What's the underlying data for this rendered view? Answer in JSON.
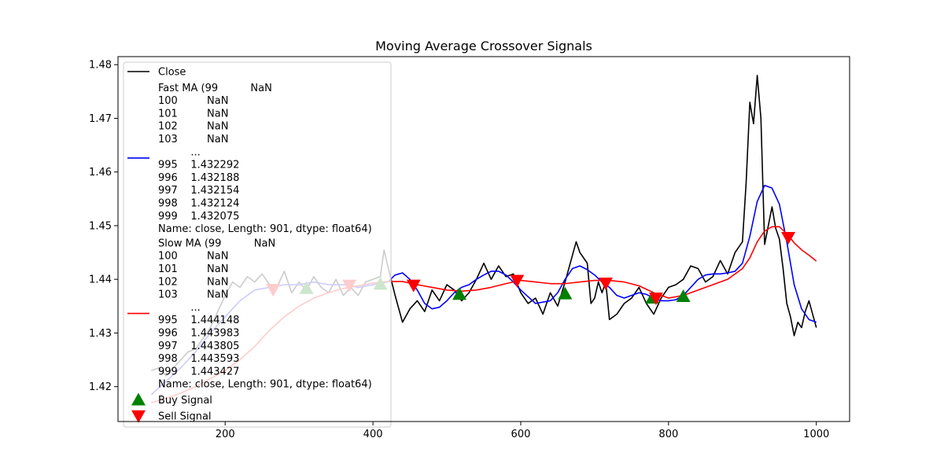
{
  "chart_data": {
    "type": "line",
    "title": "Moving Average Crossover Signals",
    "xlabel": "",
    "ylabel": "",
    "xlim": [
      55,
      1045
    ],
    "ylim": [
      1.4135,
      1.4815
    ],
    "xticks": [
      200,
      400,
      600,
      800,
      1000
    ],
    "yticks": [
      1.42,
      1.43,
      1.44,
      1.45,
      1.46,
      1.47,
      1.48
    ],
    "ytick_labels": [
      "1.42",
      "1.43",
      "1.44",
      "1.45",
      "1.46",
      "1.47",
      "1.48"
    ],
    "grid": false,
    "legend_position": "top-left",
    "colors": {
      "close": "#000000",
      "fast": "#0000ff",
      "slow": "#ff0000",
      "buy": "#008000",
      "sell": "#ff0000"
    },
    "series": [
      {
        "name": "Close",
        "style": "line",
        "x": [
          100,
          110,
          120,
          130,
          140,
          150,
          160,
          170,
          180,
          190,
          200,
          210,
          220,
          230,
          240,
          250,
          260,
          270,
          280,
          290,
          300,
          310,
          320,
          330,
          340,
          350,
          360,
          370,
          380,
          390,
          400,
          410,
          415,
          420,
          430,
          440,
          450,
          460,
          470,
          480,
          490,
          500,
          510,
          520,
          530,
          540,
          550,
          560,
          570,
          580,
          590,
          600,
          610,
          620,
          630,
          640,
          650,
          660,
          670,
          675,
          680,
          685,
          690,
          695,
          700,
          705,
          710,
          715,
          720,
          730,
          740,
          750,
          760,
          770,
          780,
          790,
          800,
          810,
          820,
          830,
          840,
          850,
          860,
          870,
          880,
          890,
          900,
          905,
          910,
          915,
          920,
          925,
          930,
          935,
          940,
          945,
          950,
          955,
          960,
          965,
          970,
          975,
          980,
          985,
          990,
          995,
          1000
        ],
        "y": [
          1.423,
          1.4235,
          1.422,
          1.4235,
          1.425,
          1.4265,
          1.427,
          1.429,
          1.431,
          1.434,
          1.437,
          1.4395,
          1.4385,
          1.4405,
          1.4395,
          1.441,
          1.439,
          1.4385,
          1.4415,
          1.4375,
          1.4395,
          1.438,
          1.4405,
          1.4385,
          1.4375,
          1.44,
          1.437,
          1.4385,
          1.437,
          1.4395,
          1.44,
          1.4405,
          1.4455,
          1.4425,
          1.437,
          1.432,
          1.4345,
          1.436,
          1.434,
          1.438,
          1.436,
          1.439,
          1.438,
          1.436,
          1.4375,
          1.44,
          1.443,
          1.44,
          1.4425,
          1.4405,
          1.441,
          1.4375,
          1.4355,
          1.4365,
          1.4335,
          1.4375,
          1.435,
          1.4395,
          1.4445,
          1.447,
          1.445,
          1.444,
          1.443,
          1.4355,
          1.4365,
          1.4395,
          1.4375,
          1.4395,
          1.4325,
          1.4335,
          1.4355,
          1.4365,
          1.4385,
          1.4355,
          1.4335,
          1.4365,
          1.4385,
          1.439,
          1.44,
          1.4425,
          1.442,
          1.4395,
          1.4405,
          1.4435,
          1.441,
          1.445,
          1.447,
          1.458,
          1.473,
          1.469,
          1.478,
          1.47,
          1.4465,
          1.45,
          1.4535,
          1.4495,
          1.4475,
          1.442,
          1.4355,
          1.433,
          1.4295,
          1.432,
          1.431,
          1.434,
          1.436,
          1.4335,
          1.431
        ],
        "label_key": "legend.close"
      },
      {
        "name": "Fast MA (99          NaN\n100         NaN\n101         NaN\n102         NaN\n103         NaN\n          ...   \n995    1.432292\n996    1.432188\n997    1.432154\n998    1.432124\n999    1.432075\nName: close, Length: 901, dtype: float64)",
        "style": "line",
        "x": [
          100,
          120,
          140,
          160,
          180,
          200,
          220,
          240,
          260,
          280,
          300,
          320,
          340,
          360,
          380,
          400,
          420,
          430,
          440,
          450,
          460,
          470,
          480,
          490,
          500,
          510,
          520,
          530,
          540,
          550,
          560,
          570,
          580,
          590,
          600,
          620,
          640,
          650,
          660,
          670,
          680,
          690,
          700,
          710,
          720,
          730,
          740,
          750,
          760,
          770,
          780,
          790,
          800,
          810,
          820,
          830,
          840,
          850,
          860,
          870,
          880,
          890,
          900,
          910,
          920,
          930,
          940,
          950,
          960,
          970,
          980,
          990,
          1000
        ],
        "y": [
          1.4185,
          1.421,
          1.4235,
          1.4265,
          1.43,
          1.433,
          1.436,
          1.438,
          1.4385,
          1.439,
          1.439,
          1.4395,
          1.439,
          1.439,
          1.4385,
          1.439,
          1.4395,
          1.4408,
          1.4412,
          1.44,
          1.438,
          1.4355,
          1.4345,
          1.4348,
          1.436,
          1.4375,
          1.4385,
          1.439,
          1.44,
          1.4408,
          1.4415,
          1.4415,
          1.4408,
          1.4395,
          1.438,
          1.4355,
          1.436,
          1.4375,
          1.44,
          1.442,
          1.4425,
          1.4418,
          1.4408,
          1.4395,
          1.4385,
          1.437,
          1.4365,
          1.437,
          1.4375,
          1.4372,
          1.4365,
          1.436,
          1.436,
          1.4362,
          1.437,
          1.4385,
          1.44,
          1.4408,
          1.441,
          1.441,
          1.4412,
          1.4415,
          1.443,
          1.448,
          1.4545,
          1.4575,
          1.457,
          1.454,
          1.447,
          1.439,
          1.4345,
          1.4325,
          1.432
        ],
        "label_key": "legend.fast"
      },
      {
        "name": "Slow MA (99          NaN\n100         NaN\n101         NaN\n102         NaN\n103         NaN\n          ...   \n995    1.444148\n996    1.443983\n997    1.443805\n998    1.443593\n999    1.443427\nName: close, Length: 901, dtype: float64)",
        "style": "line",
        "x": [
          100,
          120,
          140,
          160,
          180,
          200,
          220,
          240,
          260,
          280,
          300,
          320,
          340,
          360,
          380,
          400,
          420,
          440,
          460,
          480,
          500,
          520,
          540,
          560,
          580,
          600,
          620,
          640,
          660,
          680,
          700,
          720,
          740,
          760,
          780,
          800,
          820,
          840,
          860,
          880,
          900,
          910,
          920,
          930,
          940,
          950,
          960,
          970,
          980,
          990,
          1000
        ],
        "y": [
          1.417,
          1.4178,
          1.4188,
          1.42,
          1.4215,
          1.423,
          1.425,
          1.4275,
          1.4305,
          1.433,
          1.435,
          1.4365,
          1.4375,
          1.4383,
          1.4388,
          1.4393,
          1.4396,
          1.4396,
          1.439,
          1.4385,
          1.438,
          1.4378,
          1.438,
          1.4385,
          1.4392,
          1.4398,
          1.4395,
          1.4392,
          1.4392,
          1.4395,
          1.4398,
          1.4398,
          1.4395,
          1.4388,
          1.4375,
          1.4365,
          1.437,
          1.438,
          1.439,
          1.44,
          1.442,
          1.444,
          1.447,
          1.449,
          1.4498,
          1.4498,
          1.4485,
          1.4468,
          1.4455,
          1.4445,
          1.4434
        ],
        "label_key": "legend.slow"
      }
    ],
    "signals": {
      "buy": {
        "name": "Buy Signal",
        "x": [
          310,
          410,
          517,
          660,
          778,
          820
        ],
        "y": [
          1.4383,
          1.4391,
          1.4372,
          1.4373,
          1.4365,
          1.4368
        ]
      },
      "sell": {
        "name": "Sell Signal",
        "x": [
          265,
          368,
          455,
          595,
          715,
          783,
          962
        ],
        "y": [
          1.4381,
          1.4389,
          1.4389,
          1.4398,
          1.4393,
          1.4365,
          1.4478
        ]
      }
    }
  },
  "legend": {
    "close": "Close",
    "fast": [
      "Fast MA (99          NaN",
      "100         NaN",
      "101         NaN",
      "102         NaN",
      "103         NaN",
      "          ...   ",
      "995    1.432292",
      "996    1.432188",
      "997    1.432154",
      "998    1.432124",
      "999    1.432075",
      "Name: close, Length: 901, dtype: float64)"
    ],
    "slow": [
      "Slow MA (99          NaN",
      "100         NaN",
      "101         NaN",
      "102         NaN",
      "103         NaN",
      "          ...   ",
      "995    1.444148",
      "996    1.443983",
      "997    1.443805",
      "998    1.443593",
      "999    1.443427",
      "Name: close, Length: 901, dtype: float64)"
    ],
    "buy": "Buy Signal",
    "sell": "Sell Signal"
  }
}
